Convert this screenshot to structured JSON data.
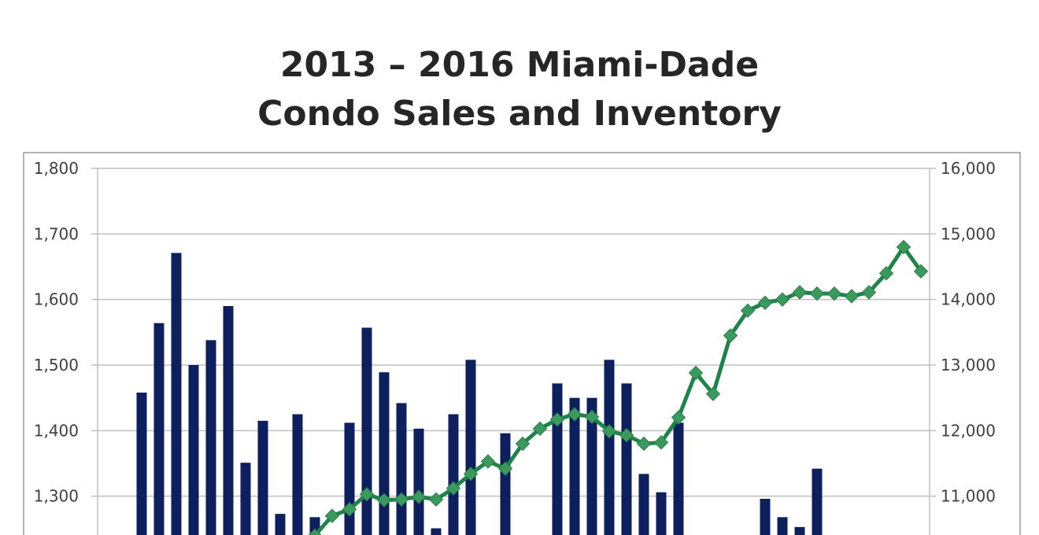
{
  "chart_data": {
    "type": "bar+line",
    "title_lines": [
      "2013 – 2016 Miami-Dade",
      "Condo Sales and Inventory"
    ],
    "left_axis": {
      "ylim": [
        1200,
        1800
      ],
      "ticks": [
        "1,800",
        "1,700",
        "1,600",
        "1,500",
        "1,400",
        "1,300"
      ],
      "tick_values": [
        1800,
        1700,
        1600,
        1500,
        1400,
        1300
      ]
    },
    "right_axis": {
      "ylim": [
        10000,
        16000
      ],
      "ticks": [
        "16,000",
        "15,000",
        "14,000",
        "13,000",
        "12,000",
        "11,000"
      ],
      "tick_values": [
        16000,
        15000,
        14000,
        13000,
        12000,
        11000
      ]
    },
    "grid": true,
    "bar_series": {
      "color": "#0d1f5c",
      "values": [
        1458,
        1564,
        1671,
        1500,
        1538,
        1590,
        1351,
        1415,
        1273,
        1425,
        1268,
        null,
        1412,
        1557,
        1489,
        1442,
        1403,
        1251,
        1425,
        1508,
        null,
        1396,
        null,
        null,
        1472,
        1450,
        1450,
        1508,
        1472,
        1334,
        1306,
        1412,
        null,
        null,
        null,
        null,
        1296,
        1268,
        1253,
        1342,
        null,
        null,
        null,
        null,
        null,
        null
      ]
    },
    "line_series": {
      "color": "#1e8449",
      "marker_color": "#3a9a5e",
      "values": [
        null,
        null,
        null,
        null,
        null,
        null,
        null,
        null,
        null,
        null,
        10400,
        10700,
        10800,
        11030,
        10940,
        10950,
        10990,
        10950,
        11120,
        11340,
        11530,
        11420,
        11800,
        12030,
        12170,
        12250,
        12210,
        11990,
        11930,
        11800,
        11820,
        12200,
        12880,
        12560,
        13450,
        13830,
        13950,
        14000,
        14110,
        14090,
        14090,
        14050,
        14110,
        14400,
        14800,
        14430
      ]
    }
  }
}
